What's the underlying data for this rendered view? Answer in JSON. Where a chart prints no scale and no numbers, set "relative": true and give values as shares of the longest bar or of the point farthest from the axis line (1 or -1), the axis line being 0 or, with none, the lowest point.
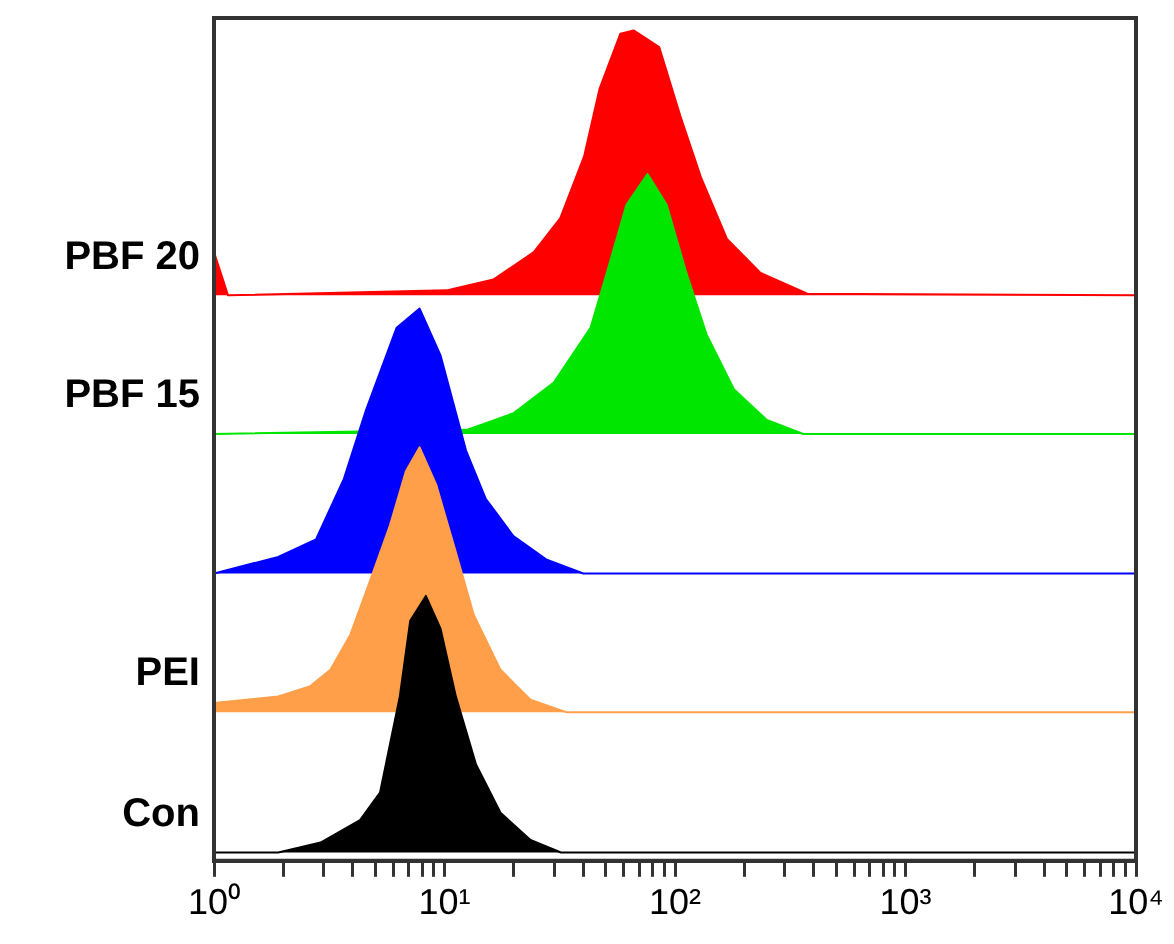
{
  "chart_data": {
    "type": "area",
    "relative": true,
    "log": "x",
    "grid": false,
    "legend": false,
    "xlim": [
      1,
      10000
    ],
    "xticks": [
      {
        "value": 1,
        "label": "10⁰"
      },
      {
        "value": 2,
        "label": null
      },
      {
        "value": 3,
        "label": null
      },
      {
        "value": 4,
        "label": null
      },
      {
        "value": 5,
        "label": null
      },
      {
        "value": 6,
        "label": null
      },
      {
        "value": 7,
        "label": null
      },
      {
        "value": 8,
        "label": null
      },
      {
        "value": 9,
        "label": null
      },
      {
        "value": 10,
        "label": "10¹"
      },
      {
        "value": 20,
        "label": null
      },
      {
        "value": 30,
        "label": null
      },
      {
        "value": 40,
        "label": null
      },
      {
        "value": 50,
        "label": null
      },
      {
        "value": 60,
        "label": null
      },
      {
        "value": 70,
        "label": null
      },
      {
        "value": 80,
        "label": null
      },
      {
        "value": 90,
        "label": null
      },
      {
        "value": 100,
        "label": "10²"
      },
      {
        "value": 200,
        "label": null
      },
      {
        "value": 300,
        "label": null
      },
      {
        "value": 400,
        "label": null
      },
      {
        "value": 500,
        "label": null
      },
      {
        "value": 600,
        "label": null
      },
      {
        "value": 700,
        "label": null
      },
      {
        "value": 800,
        "label": null
      },
      {
        "value": 900,
        "label": null
      },
      {
        "value": 1000,
        "label": "10³"
      },
      {
        "value": 2000,
        "label": null
      },
      {
        "value": 3000,
        "label": null
      },
      {
        "value": 4000,
        "label": null
      },
      {
        "value": 5000,
        "label": null
      },
      {
        "value": 6000,
        "label": null
      },
      {
        "value": 7000,
        "label": null
      },
      {
        "value": 8000,
        "label": null
      },
      {
        "value": 9000,
        "label": null
      },
      {
        "value": 10000,
        "label": "10⁴"
      }
    ],
    "series": [
      {
        "name": "PBF 20",
        "color": "#ff0000",
        "x": [
          1,
          1.15,
          10.2,
          16.3,
          24.4,
          31.8,
          40.3,
          47.1,
          57.9,
          66.1,
          85.4,
          105.5,
          129.6,
          168,
          235,
          375,
          10000
        ],
        "values": [
          0.733,
          0.681,
          0.687,
          0.7,
          0.733,
          0.774,
          0.848,
          0.93,
          0.996,
          1.0,
          0.98,
          0.897,
          0.823,
          0.749,
          0.708,
          0.683,
          0.681
        ]
      },
      {
        "name": "PBF 15",
        "color": "#00e600",
        "x": [
          1,
          12.5,
          19.9,
          29.8,
          43,
          50.6,
          61.6,
          76,
          92,
          112,
          137,
          180,
          250,
          360,
          10000
        ],
        "values": [
          0.514,
          0.519,
          0.539,
          0.576,
          0.642,
          0.708,
          0.79,
          0.827,
          0.79,
          0.708,
          0.634,
          0.568,
          0.531,
          0.514,
          0.514
        ]
      },
      {
        "color": "#0000ff",
        "x": [
          1,
          1.9,
          2.77,
          3.66,
          4.57,
          6.2,
          7.8,
          9.6,
          12.4,
          15.1,
          19.9,
          27.6,
          40,
          10000
        ],
        "values": [
          0.346,
          0.366,
          0.387,
          0.46,
          0.543,
          0.642,
          0.665,
          0.609,
          0.494,
          0.436,
          0.391,
          0.363,
          0.346,
          0.346
        ]
      },
      {
        "name": "PEI",
        "color": "#ff9f4a",
        "x": [
          1,
          1.9,
          2.6,
          3.2,
          3.9,
          4.75,
          5.8,
          6.8,
          7.8,
          9.2,
          11,
          13.4,
          17.5,
          23.6,
          33.7,
          10000
        ],
        "values": [
          0.19,
          0.198,
          0.21,
          0.23,
          0.272,
          0.337,
          0.404,
          0.469,
          0.498,
          0.453,
          0.379,
          0.296,
          0.23,
          0.194,
          0.179,
          0.179
        ]
      },
      {
        "name": "Con",
        "color": "#000000",
        "x": [
          1,
          1.9,
          2.9,
          4.3,
          5.25,
          6.4,
          7.1,
          8.3,
          9.6,
          11.2,
          13.7,
          17.5,
          23.6,
          32,
          10000
        ],
        "values": [
          0.01,
          0.01,
          0.022,
          0.049,
          0.082,
          0.198,
          0.289,
          0.319,
          0.28,
          0.198,
          0.116,
          0.058,
          0.025,
          0.01,
          0.01
        ]
      }
    ]
  }
}
